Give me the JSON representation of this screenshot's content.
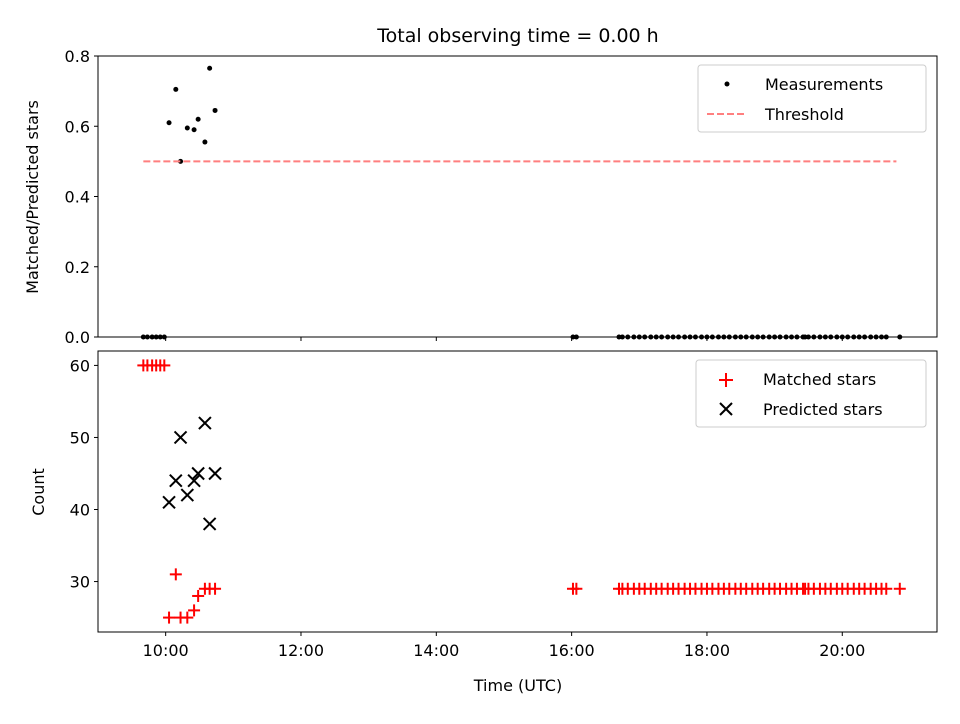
{
  "chart_data": [
    {
      "type": "scatter",
      "title": "Total observing time = 0.00 h",
      "xlabel": "",
      "ylabel": "Matched/Predicted stars",
      "xlim": [
        9.0,
        21.4
      ],
      "ylim": [
        0,
        0.8
      ],
      "yticks": [
        "0.0",
        "0.2",
        "0.4",
        "0.6",
        "0.8"
      ],
      "legend_placement": "top-right",
      "series": [
        {
          "name": "Measurements",
          "color": "#000000",
          "marker": "dot",
          "x": [
            9.67,
            9.73,
            9.8,
            9.86,
            9.92,
            9.98,
            10.05,
            10.15,
            10.22,
            10.32,
            10.42,
            10.48,
            10.58,
            10.65,
            10.73,
            16.02,
            16.07,
            16.7,
            16.75,
            16.83,
            16.92,
            17.0,
            17.08,
            17.17,
            17.25,
            17.33,
            17.42,
            17.5,
            17.58,
            17.67,
            17.75,
            17.83,
            17.92,
            18.0,
            18.08,
            18.17,
            18.25,
            18.33,
            18.42,
            18.5,
            18.58,
            18.67,
            18.75,
            18.83,
            18.92,
            19.0,
            19.08,
            19.17,
            19.25,
            19.33,
            19.42,
            19.45,
            19.5,
            19.58,
            19.67,
            19.75,
            19.83,
            19.92,
            20.0,
            20.08,
            20.17,
            20.25,
            20.33,
            20.42,
            20.5,
            20.58,
            20.65,
            20.85
          ],
          "y": [
            0,
            0,
            0,
            0,
            0,
            0,
            0.61,
            0.705,
            0.5,
            0.595,
            0.59,
            0.62,
            0.555,
            0.765,
            0.645,
            0,
            0,
            0,
            0,
            0,
            0,
            0,
            0,
            0,
            0,
            0,
            0,
            0,
            0,
            0,
            0,
            0,
            0,
            0,
            0,
            0,
            0,
            0,
            0,
            0,
            0,
            0,
            0,
            0,
            0,
            0,
            0,
            0,
            0,
            0,
            0,
            0,
            0,
            0,
            0,
            0,
            0,
            0,
            0,
            0,
            0,
            0,
            0,
            0,
            0,
            0,
            0,
            0
          ]
        },
        {
          "name": "Threshold",
          "color": "#ff7f7f",
          "style": "dashed",
          "x": [
            9.67,
            20.8
          ],
          "y": [
            0.5,
            0.5
          ]
        }
      ]
    },
    {
      "type": "scatter",
      "title": "",
      "xlabel": "Time (UTC)",
      "ylabel": "Count",
      "xlim": [
        9.0,
        21.4
      ],
      "ylim": [
        23,
        62
      ],
      "yticks": [
        "30",
        "40",
        "50",
        "60"
      ],
      "xticks": [
        "10:00",
        "12:00",
        "14:00",
        "16:00",
        "18:00",
        "20:00"
      ],
      "legend_placement": "top-right",
      "series": [
        {
          "name": "Matched stars",
          "color": "#ff0000",
          "marker": "plus",
          "x": [
            9.67,
            9.73,
            9.8,
            9.86,
            9.92,
            9.98,
            10.05,
            10.15,
            10.22,
            10.32,
            10.42,
            10.48,
            10.58,
            10.65,
            10.73,
            16.02,
            16.07,
            16.7,
            16.75,
            16.83,
            16.92,
            17.0,
            17.08,
            17.17,
            17.25,
            17.33,
            17.42,
            17.5,
            17.58,
            17.67,
            17.75,
            17.83,
            17.92,
            18.0,
            18.08,
            18.17,
            18.25,
            18.33,
            18.42,
            18.5,
            18.58,
            18.67,
            18.75,
            18.83,
            18.92,
            19.0,
            19.08,
            19.17,
            19.25,
            19.33,
            19.42,
            19.45,
            19.5,
            19.58,
            19.67,
            19.75,
            19.83,
            19.92,
            20.0,
            20.08,
            20.17,
            20.25,
            20.33,
            20.42,
            20.5,
            20.58,
            20.65,
            20.85
          ],
          "y": [
            60,
            60,
            60,
            60,
            60,
            60,
            25,
            31,
            25,
            25,
            26,
            28,
            29,
            29,
            29,
            29,
            29,
            29,
            29,
            29,
            29,
            29,
            29,
            29,
            29,
            29,
            29,
            29,
            29,
            29,
            29,
            29,
            29,
            29,
            29,
            29,
            29,
            29,
            29,
            29,
            29,
            29,
            29,
            29,
            29,
            29,
            29,
            29,
            29,
            29,
            29,
            29,
            29,
            29,
            29,
            29,
            29,
            29,
            29,
            29,
            29,
            29,
            29,
            29,
            29,
            29,
            29,
            29
          ]
        },
        {
          "name": "Predicted stars",
          "color": "#000000",
          "marker": "x",
          "x": [
            10.05,
            10.15,
            10.22,
            10.32,
            10.42,
            10.48,
            10.58,
            10.65,
            10.73
          ],
          "y": [
            41,
            44,
            50,
            42,
            44,
            45,
            52,
            38,
            45
          ]
        }
      ]
    }
  ]
}
